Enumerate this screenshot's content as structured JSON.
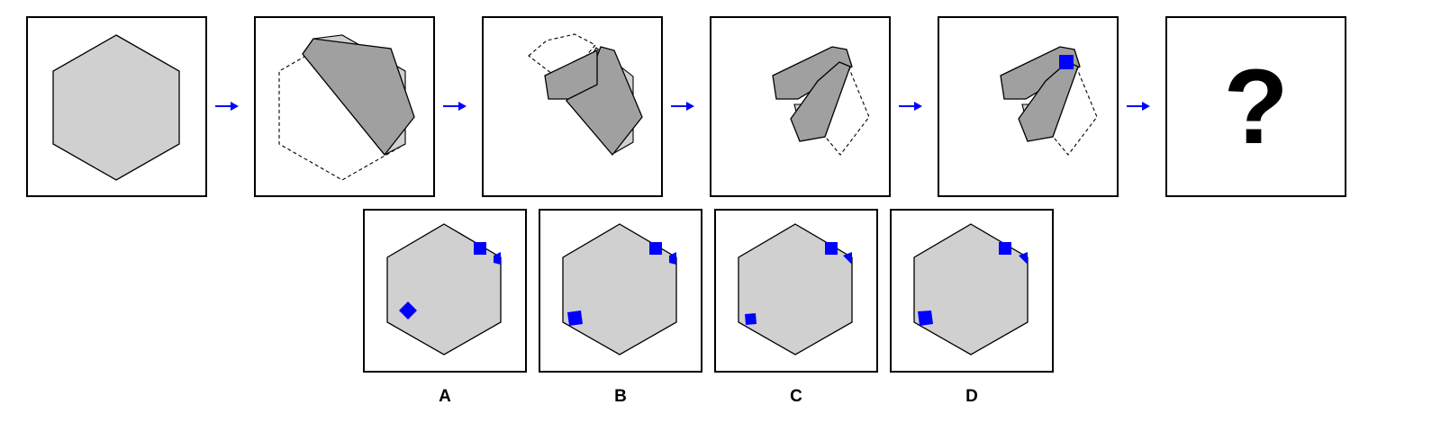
{
  "puzzle": {
    "question_mark": "?",
    "colors": {
      "paper": "#d0d0d0",
      "folded": "#a0a0a0",
      "hole": "#0000ff",
      "arrow": "#0000ff"
    },
    "options": [
      {
        "label": "A"
      },
      {
        "label": "B"
      },
      {
        "label": "C"
      },
      {
        "label": "D"
      }
    ]
  }
}
